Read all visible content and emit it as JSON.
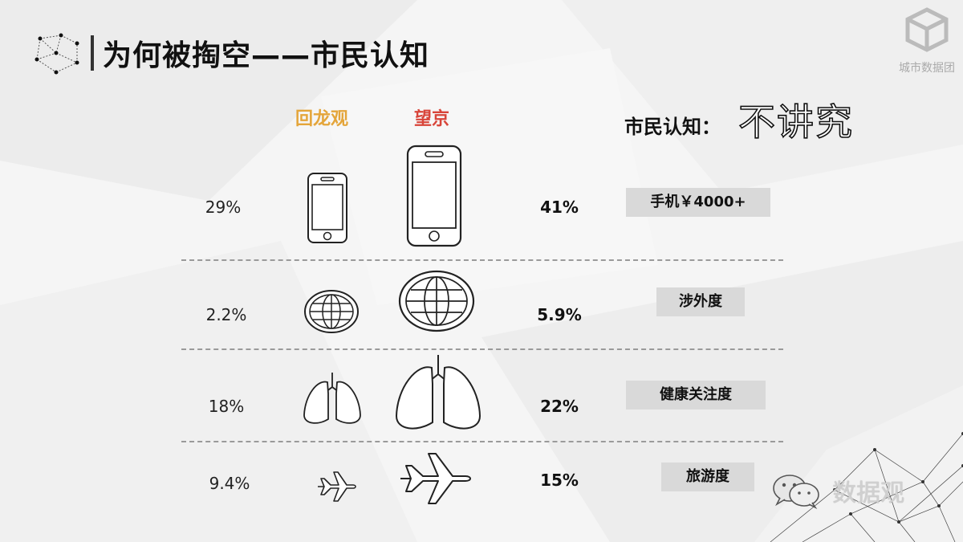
{
  "header": {
    "title": "为何被掏空——市民认知",
    "brand_text": "城市数据团"
  },
  "columns": {
    "left": "回龙观",
    "right": "望京"
  },
  "cognition": {
    "label": "市民认知：",
    "value": "不讲究"
  },
  "rows": [
    {
      "left_pct": "29%",
      "right_pct": "41%",
      "tag": "手机￥4000+",
      "icon": "smartphone-icon"
    },
    {
      "left_pct": "2.2%",
      "right_pct": "5.9%",
      "tag": "涉外度",
      "icon": "globe-icon"
    },
    {
      "left_pct": "18%",
      "right_pct": "22%",
      "tag": "健康关注度",
      "icon": "lungs-icon"
    },
    {
      "left_pct": "9.4%",
      "right_pct": "15%",
      "tag": "旅游度",
      "icon": "airplane-icon"
    }
  ],
  "watermark": {
    "text": "数据观",
    "icon": "wechat-icon"
  },
  "colors": {
    "left_accent": "#e4a53a",
    "right_accent": "#d8453a",
    "tag_bg": "#d9d9d9"
  }
}
